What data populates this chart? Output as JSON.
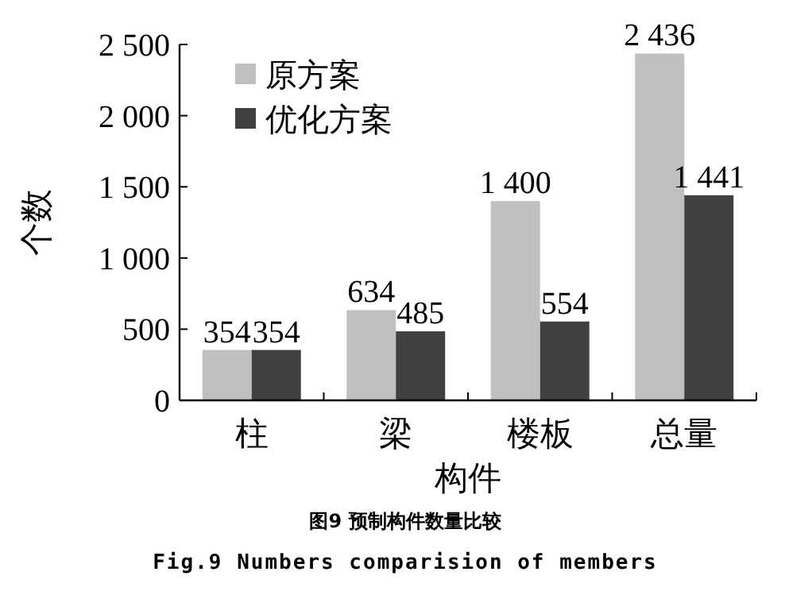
{
  "chart_data": {
    "type": "bar",
    "title": "图9 预制构件数量比较",
    "subtitle": "Fig.9 Numbers comparision of members",
    "xlabel": "构件",
    "ylabel": "个数",
    "categories": [
      "柱",
      "梁",
      "楼板",
      "总量"
    ],
    "series": [
      {
        "name": "原方案",
        "color": "#c0c0c0",
        "values": [
          354,
          634,
          1400,
          2436
        ],
        "value_labels": [
          "354",
          "634",
          "1 400",
          "2 436"
        ]
      },
      {
        "name": "优化方案",
        "color": "#404040",
        "values": [
          354,
          485,
          554,
          1441
        ],
        "value_labels": [
          "354",
          "485",
          "554",
          "1 441"
        ]
      }
    ],
    "ylim": [
      0,
      2500
    ],
    "yticks": [
      0,
      500,
      {
        "value": 1000,
        "label": "1 000"
      },
      {
        "value": 1500,
        "label": "1 500"
      },
      {
        "value": 2000,
        "label": "2 000"
      },
      {
        "value": 2500,
        "label": "2 500"
      }
    ],
    "legend": "top left",
    "grid": false
  }
}
